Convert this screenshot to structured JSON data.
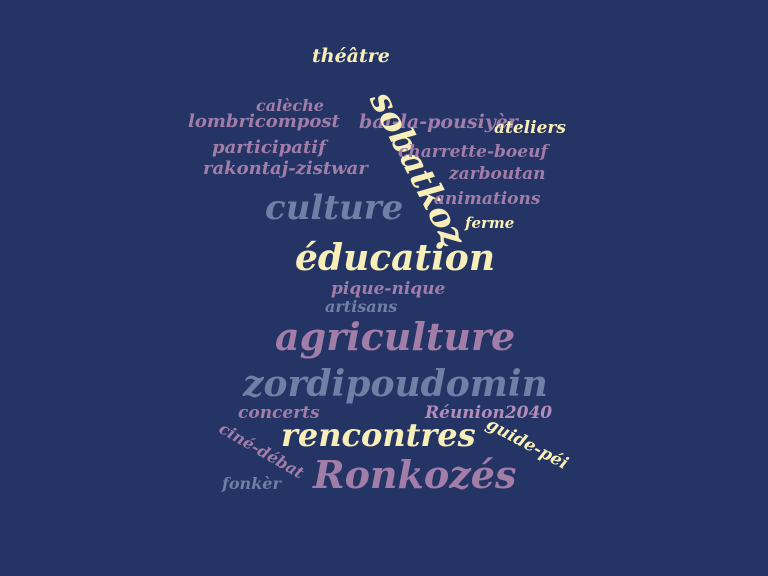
{
  "cloud": {
    "words": [
      "théâtre",
      "calèche",
      "lombricompost",
      "bal-la-pousiyèr",
      "ateliers",
      "sobatkoz",
      "participatif",
      "charrette-boeuf",
      "rakontaj-zistwar",
      "zarboutan",
      "animations",
      "culture",
      "ferme",
      "éducation",
      "pique-nique",
      "artisans",
      "agriculture",
      "zordipoudomin",
      "concerts",
      "Réunion2040",
      "rencontres",
      "guide-péi",
      "ciné-débat",
      "fonkèr",
      "Ronkozés"
    ]
  },
  "colors": {
    "background": "#243465",
    "yellow": "#f7eeb8",
    "pink": "#a17da8",
    "grey": "#6f7fa6",
    "lilac": "#b28dba"
  }
}
